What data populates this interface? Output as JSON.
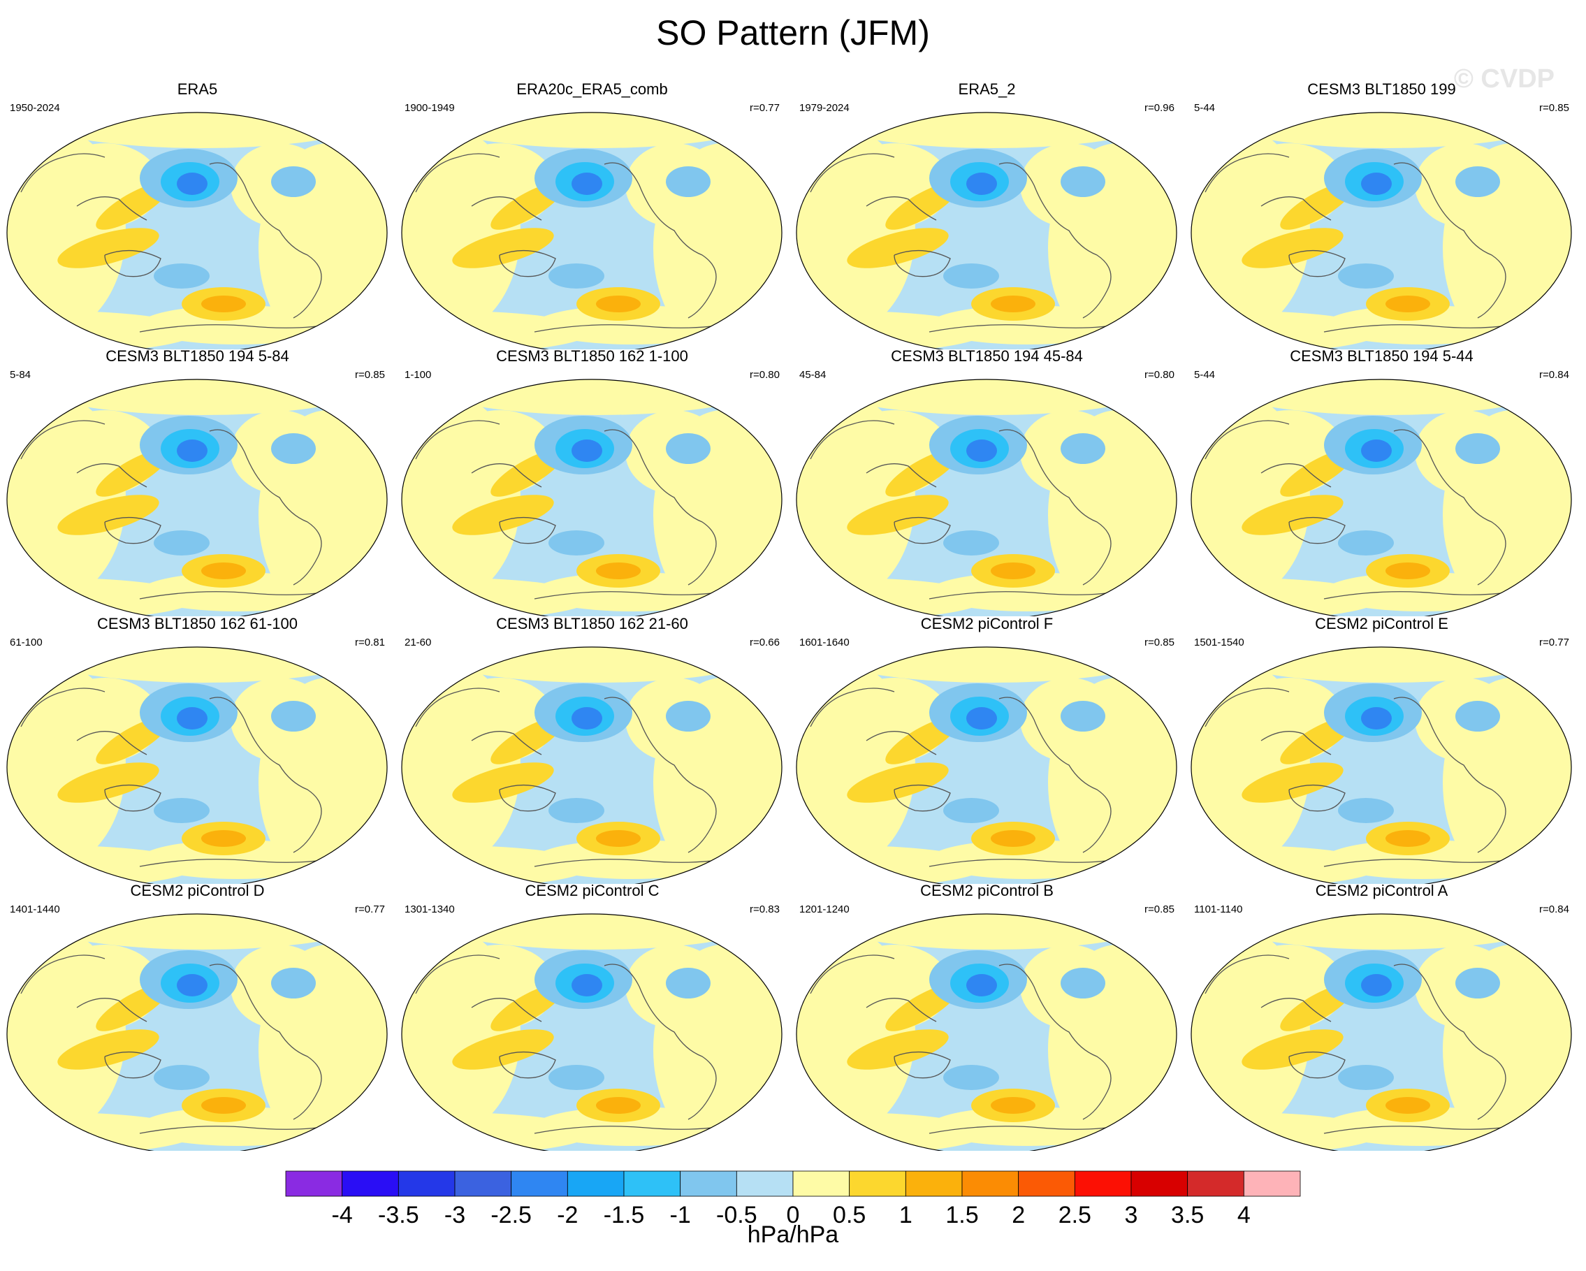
{
  "title": "SO Pattern (JFM)",
  "watermark": "© CVDP",
  "panels": [
    {
      "title": "ERA5",
      "period": "1950-2024",
      "r": ""
    },
    {
      "title": "ERA20c_ERA5_comb",
      "period": "1900-1949",
      "r": "r=0.77"
    },
    {
      "title": "ERA5_2",
      "period": "1979-2024",
      "r": "r=0.96"
    },
    {
      "title": "CESM3 BLT1850 199",
      "period": "5-44",
      "r": "r=0.85"
    },
    {
      "title": "CESM3 BLT1850 194 5-84",
      "period": "5-84",
      "r": "r=0.85"
    },
    {
      "title": "CESM3 BLT1850 162 1-100",
      "period": "1-100",
      "r": "r=0.80"
    },
    {
      "title": "CESM3 BLT1850 194 45-84",
      "period": "45-84",
      "r": "r=0.80"
    },
    {
      "title": "CESM3 BLT1850 194 5-44",
      "period": "5-44",
      "r": "r=0.84"
    },
    {
      "title": "CESM3 BLT1850 162 61-100",
      "period": "61-100",
      "r": "r=0.81"
    },
    {
      "title": "CESM3 BLT1850 162 21-60",
      "period": "21-60",
      "r": "r=0.66"
    },
    {
      "title": "CESM2 piControl F",
      "period": "1601-1640",
      "r": "r=0.85"
    },
    {
      "title": "CESM2 piControl E",
      "period": "1501-1540",
      "r": "r=0.77"
    },
    {
      "title": "CESM2 piControl D",
      "period": "1401-1440",
      "r": "r=0.77"
    },
    {
      "title": "CESM2 piControl C",
      "period": "1301-1340",
      "r": "r=0.83"
    },
    {
      "title": "CESM2 piControl B",
      "period": "1201-1240",
      "r": "r=0.85"
    },
    {
      "title": "CESM2 piControl A",
      "period": "1101-1140",
      "r": "r=0.84"
    }
  ],
  "colorbar": {
    "units": "hPa/hPa",
    "labels": [
      "-4",
      "-3.5",
      "-3",
      "-2.5",
      "-2",
      "-1.5",
      "-1",
      "-0.5",
      "0",
      "0.5",
      "1",
      "1.5",
      "2",
      "2.5",
      "3",
      "3.5",
      "4"
    ],
    "colors": [
      "#8a2be2",
      "#2a0ef5",
      "#2438e8",
      "#3b62e0",
      "#2f86f2",
      "#18a6f5",
      "#2ec1f7",
      "#80c6ee",
      "#b6e0f4",
      "#fefba6",
      "#fcd72e",
      "#fbb10c",
      "#fb8c04",
      "#fb5a05",
      "#fc1004",
      "#d80000",
      "#d42a2a",
      "#feb3b8"
    ]
  },
  "colors": {
    "ocean_base": "#b6e0f4",
    "land_base": "#fefba6",
    "coast": "#555555"
  }
}
